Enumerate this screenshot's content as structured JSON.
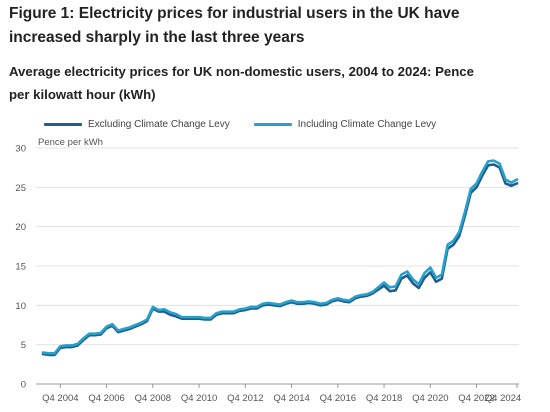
{
  "header": {
    "title": "Figure 1: Electricity prices for industrial users in the UK have increased sharply in the last three years",
    "subtitle": "Average electricity prices for UK non-domestic users, 2004 to 2024: Pence per kilowatt hour (kWh)"
  },
  "chart_data": {
    "type": "line",
    "title": "Average electricity prices for UK non-domestic users, 2004 to 2024: Pence per kilowatt hour (kWh)",
    "ylabel": "Pence per kWh",
    "xlabel": "",
    "ylim": [
      0,
      30
    ],
    "yticks": [
      "0",
      "5",
      "10",
      "15",
      "20",
      "25",
      "30"
    ],
    "xticks": [
      "Q4 2004",
      "Q4 2006",
      "Q4 2008",
      "Q4 2010",
      "Q4 2012",
      "Q4 2014",
      "Q4 2016",
      "Q4 2018",
      "Q4 2020",
      "Q4 2022",
      "Q4 2024"
    ],
    "grid": "horizontal",
    "legend_position": "top",
    "x_range": [
      "Q1 2004",
      "Q4 2024"
    ],
    "series": [
      {
        "name": "Excluding Climate Change Levy",
        "color": "#1f5d8c",
        "values": [
          3.8,
          3.7,
          3.7,
          4.6,
          4.7,
          4.7,
          4.9,
          5.6,
          6.2,
          6.2,
          6.3,
          7.1,
          7.4,
          6.6,
          6.8,
          7.0,
          7.3,
          7.6,
          8.0,
          9.6,
          9.2,
          9.2,
          8.8,
          8.6,
          8.3,
          8.3,
          8.3,
          8.3,
          8.2,
          8.2,
          8.8,
          9.0,
          9.0,
          9.0,
          9.3,
          9.4,
          9.6,
          9.6,
          10.0,
          10.1,
          10.0,
          9.9,
          10.2,
          10.4,
          10.2,
          10.2,
          10.3,
          10.2,
          10.0,
          10.1,
          10.5,
          10.7,
          10.5,
          10.4,
          10.9,
          11.1,
          11.2,
          11.5,
          12.0,
          12.5,
          11.8,
          11.9,
          13.4,
          13.8,
          12.8,
          12.2,
          13.5,
          14.2,
          13.0,
          13.4,
          17.2,
          17.7,
          18.8,
          21.4,
          24.3,
          25.0,
          26.5,
          27.8,
          27.9,
          27.5,
          25.5,
          25.2,
          25.5
        ]
      },
      {
        "name": "Including Climate Change Levy",
        "color": "#27a0cc",
        "values": [
          4.0,
          3.9,
          3.9,
          4.8,
          4.9,
          4.9,
          5.1,
          5.8,
          6.4,
          6.4,
          6.5,
          7.3,
          7.6,
          6.8,
          7.0,
          7.2,
          7.5,
          7.8,
          8.2,
          9.8,
          9.4,
          9.5,
          9.1,
          8.9,
          8.5,
          8.5,
          8.5,
          8.5,
          8.4,
          8.4,
          9.0,
          9.2,
          9.2,
          9.2,
          9.5,
          9.6,
          9.8,
          9.8,
          10.2,
          10.3,
          10.2,
          10.1,
          10.4,
          10.6,
          10.4,
          10.4,
          10.5,
          10.4,
          10.2,
          10.3,
          10.7,
          10.9,
          10.7,
          10.6,
          11.1,
          11.3,
          11.4,
          11.7,
          12.3,
          12.9,
          12.3,
          12.4,
          13.9,
          14.3,
          13.3,
          12.7,
          14.1,
          14.8,
          13.5,
          13.9,
          17.7,
          18.2,
          19.3,
          21.9,
          24.8,
          25.5,
          27.0,
          28.3,
          28.4,
          28.0,
          26.0,
          25.6,
          26.0
        ]
      }
    ]
  }
}
